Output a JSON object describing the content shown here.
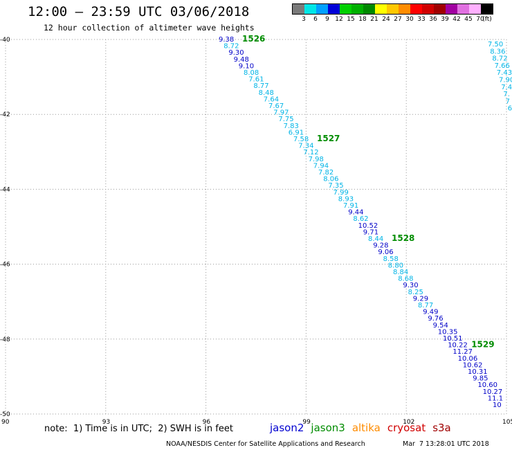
{
  "header": {
    "title": "12:00 – 23:59 UTC 03/06/2018",
    "subtitle": "12 hour collection of altimeter wave heights"
  },
  "legend": {
    "unit": "(ft)",
    "bins": [
      {
        "label": "3",
        "color": "#7a7a7a"
      },
      {
        "label": "6",
        "color": "#00e6e6"
      },
      {
        "label": "9",
        "color": "#00a0ff"
      },
      {
        "label": "12",
        "color": "#0000d8"
      },
      {
        "label": "15",
        "color": "#00d000"
      },
      {
        "label": "18",
        "color": "#00b000"
      },
      {
        "label": "21",
        "color": "#008800"
      },
      {
        "label": "24",
        "color": "#ffff00"
      },
      {
        "label": "27",
        "color": "#ffc800"
      },
      {
        "label": "30",
        "color": "#ff8c00"
      },
      {
        "label": "33",
        "color": "#ff0000"
      },
      {
        "label": "36",
        "color": "#d00000"
      },
      {
        "label": "39",
        "color": "#a00000"
      },
      {
        "label": "42",
        "color": "#a000a0"
      },
      {
        "label": "45",
        "color": "#e070e0"
      },
      {
        "label": "70",
        "color": "#ffb0ff"
      },
      {
        "label": "",
        "color": "#000000"
      }
    ]
  },
  "map": {
    "lon_range": [
      90,
      105
    ],
    "lat_range": [
      -50,
      -40
    ],
    "lon_ticks": [
      "90",
      "93",
      "96",
      "99",
      "102",
      "105"
    ],
    "lat_ticks": [
      "-40",
      "-42",
      "-44",
      "-46",
      "-48",
      "-50"
    ],
    "grid_color": "#999999",
    "track_a": {
      "values": [
        {
          "v": "9.38",
          "c": "blue"
        },
        {
          "v": "8.72",
          "c": "cyan"
        },
        {
          "v": "9.30",
          "c": "blue"
        },
        {
          "v": "9.48",
          "c": "blue"
        },
        {
          "v": "9.10",
          "c": "blue"
        },
        {
          "v": "8.08",
          "c": "cyan"
        },
        {
          "v": "7.61",
          "c": "cyan"
        },
        {
          "v": "8.77",
          "c": "cyan"
        },
        {
          "v": "8.48",
          "c": "cyan"
        },
        {
          "v": "7.64",
          "c": "cyan"
        },
        {
          "v": "7.67",
          "c": "cyan"
        },
        {
          "v": "7.97",
          "c": "cyan"
        },
        {
          "v": "7.75",
          "c": "cyan"
        },
        {
          "v": "7.83",
          "c": "cyan"
        },
        {
          "v": "6.91",
          "c": "cyan"
        },
        {
          "v": "7.58",
          "c": "cyan"
        },
        {
          "v": "7.34",
          "c": "cyan"
        },
        {
          "v": "7.12",
          "c": "cyan"
        },
        {
          "v": "7.98",
          "c": "cyan"
        },
        {
          "v": "7.94",
          "c": "cyan"
        },
        {
          "v": "7.82",
          "c": "cyan"
        },
        {
          "v": "8.06",
          "c": "cyan"
        },
        {
          "v": "7.35",
          "c": "cyan"
        },
        {
          "v": "7.99",
          "c": "cyan"
        },
        {
          "v": "8.93",
          "c": "cyan"
        },
        {
          "v": "7.91",
          "c": "cyan"
        },
        {
          "v": "9.44",
          "c": "blue"
        },
        {
          "v": "8.62",
          "c": "cyan"
        },
        {
          "v": "10.52",
          "c": "blue"
        },
        {
          "v": "9.71",
          "c": "blue"
        },
        {
          "v": "8.44",
          "c": "cyan"
        },
        {
          "v": "9.28",
          "c": "blue"
        },
        {
          "v": "9.06",
          "c": "blue"
        },
        {
          "v": "8.58",
          "c": "cyan"
        },
        {
          "v": "8.80",
          "c": "cyan"
        },
        {
          "v": "8.84",
          "c": "cyan"
        },
        {
          "v": "8.68",
          "c": "cyan"
        },
        {
          "v": "9.30",
          "c": "blue"
        },
        {
          "v": "8.25",
          "c": "cyan"
        },
        {
          "v": "9.29",
          "c": "blue"
        },
        {
          "v": "8.77",
          "c": "cyan"
        },
        {
          "v": "9.49",
          "c": "blue"
        },
        {
          "v": "9.76",
          "c": "blue"
        },
        {
          "v": "9.54",
          "c": "blue"
        },
        {
          "v": "10.35",
          "c": "blue"
        },
        {
          "v": "10.51",
          "c": "blue"
        },
        {
          "v": "10.22",
          "c": "blue"
        },
        {
          "v": "11.27",
          "c": "blue"
        },
        {
          "v": "10.06",
          "c": "blue"
        },
        {
          "v": "10.62",
          "c": "blue"
        },
        {
          "v": "10.31",
          "c": "blue"
        },
        {
          "v": "9.85",
          "c": "blue"
        },
        {
          "v": "10.60",
          "c": "blue"
        },
        {
          "v": "10.27",
          "c": "blue"
        },
        {
          "v": "11.1",
          "c": "blue"
        },
        {
          "v": "10",
          "c": "blue"
        }
      ],
      "time_labels": [
        "1526",
        "1527",
        "1528",
        "1529"
      ]
    },
    "track_b": {
      "values": [
        "7.50",
        "8.36",
        "8.72",
        "7.66",
        "7.43",
        "7.90",
        "7.4",
        "7.",
        "7",
        "6"
      ]
    }
  },
  "footer": {
    "note": "note:  1) Time is in UTC;  2) SWH is in feet",
    "missions": [
      {
        "name": "jason2",
        "color": "#0000d0"
      },
      {
        "name": "jason3",
        "color": "#008c00"
      },
      {
        "name": "altika",
        "color": "#ff8c00"
      },
      {
        "name": "cryosat",
        "color": "#d00000"
      },
      {
        "name": "s3a",
        "color": "#a00000"
      }
    ],
    "credit": "NOAA/NESDIS Center for Satellite Applications and Research",
    "timestamp": "Mar  7 13:28:01 UTC 2018"
  }
}
